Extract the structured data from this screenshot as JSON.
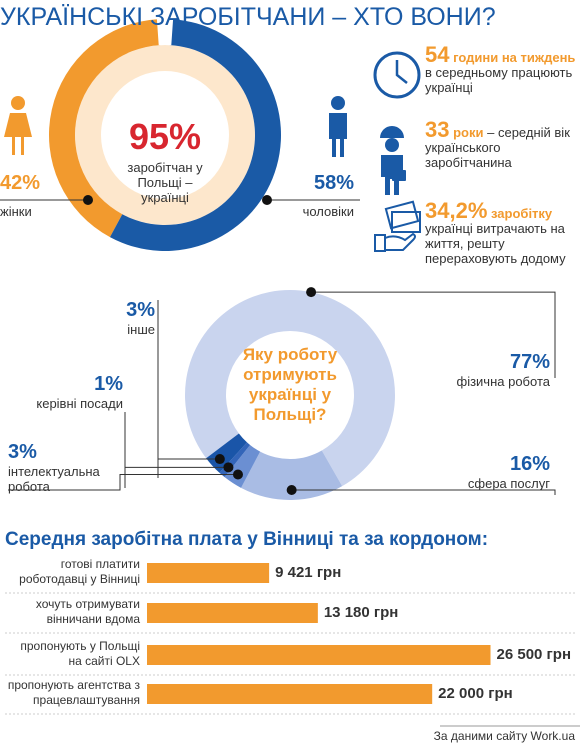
{
  "title": "УКРАЇНСЬКІ ЗАРОБІТЧАНИ – ХТО ВОНИ?",
  "facts": [
    {
      "number": "54",
      "highlight": "години на тиждень",
      "text": "в середньому працюють українці"
    },
    {
      "number": "33",
      "highlight": "роки",
      "text": "– середній вік українського заробітчанина"
    },
    {
      "number": "34,2%",
      "highlight": "заробітку",
      "text": "українці витрачають на життя, решту перераховують додому"
    }
  ],
  "chart_data": [
    {
      "type": "donut",
      "center_title": "95%",
      "center_text": "заробітчан у Польщі – українці",
      "categories": [
        "жінки",
        "чоловіки"
      ],
      "values": [
        42,
        58
      ],
      "value_labels": [
        "42%",
        "58%"
      ],
      "colors": [
        "#f29a2e",
        "#1a5aa6"
      ]
    },
    {
      "type": "pie",
      "center_text": "Яку роботу отримують українці у Польщі?",
      "categories": [
        "фізична робота",
        "сфера послуг",
        "інтелектуальна робота",
        "керівні посади",
        "інше"
      ],
      "values": [
        77,
        16,
        3,
        1,
        3
      ],
      "value_labels": [
        "77%",
        "16%",
        "3%",
        "1%",
        "3%"
      ],
      "colors": [
        "#c9d4ee",
        "#a9bce4",
        "#6b8fd2",
        "#3365b9",
        "#1a55a8"
      ]
    },
    {
      "type": "hbar",
      "title": "Середня заробітна плата у Вінниці та за кордоном:",
      "categories": [
        "готові платити роботодавці у Вінниці",
        "хочуть отримувати вінничани вдома",
        "пропонують у Польщі на сайті OLX",
        "пропонують агентства з працевлаштування"
      ],
      "values": [
        9421,
        13180,
        26500,
        22000
      ],
      "value_labels": [
        "9 421 грн",
        "13 180 грн",
        "26 500 грн",
        "22 000 грн"
      ],
      "color": "#f29a2e",
      "xlim": [
        0,
        27000
      ]
    }
  ],
  "source": "За даними сайту Work.ua"
}
